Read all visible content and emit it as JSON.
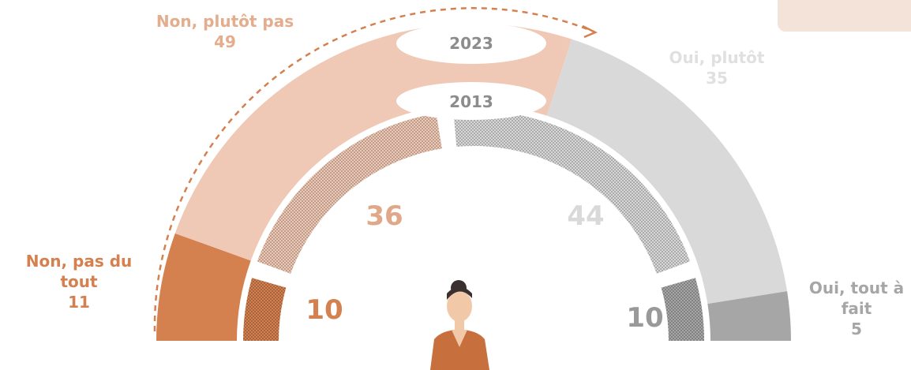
{
  "chart_data": {
    "type": "semi-donut",
    "categories": [
      "Non, pas du tout",
      "Non, plutôt pas",
      "Oui, plutôt",
      "Oui, tout à fait"
    ],
    "colors": [
      "#d4804f",
      "#efc9b5",
      "#d9d9d9",
      "#a6a6a6"
    ],
    "series": [
      {
        "name": "2023",
        "values": [
          11,
          49,
          35,
          5
        ]
      },
      {
        "name": "2013",
        "values": [
          10,
          36,
          44,
          10
        ]
      }
    ]
  }
}
